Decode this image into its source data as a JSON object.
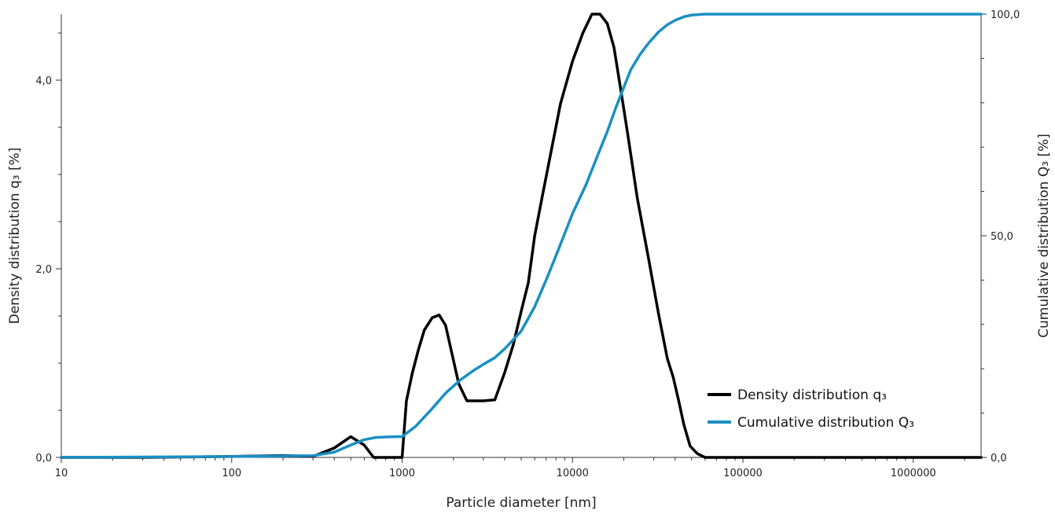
{
  "chart_data": {
    "type": "line",
    "xlabel": "Particle diameter [nm]",
    "ylabel": "Density distribution q₃ [%]",
    "y2label": "Cumulative distribution Q₃ [%]",
    "x_scale": "log",
    "xlim": [
      10,
      2500000
    ],
    "ylim": [
      0,
      4.7
    ],
    "y2lim": [
      0,
      100
    ],
    "x_ticks": [
      10,
      100,
      1000,
      10000,
      100000,
      1000000
    ],
    "x_tick_labels": [
      "10",
      "100",
      "1000",
      "10000",
      "100000",
      "1000000"
    ],
    "y_ticks": [
      0,
      2,
      4
    ],
    "y_tick_labels": [
      "0,0",
      "2,0",
      "4,0"
    ],
    "y2_ticks": [
      0,
      50,
      100
    ],
    "y2_tick_labels": [
      "0,0",
      "50,0",
      "100,0"
    ],
    "legend_position": "bottom-right",
    "series": [
      {
        "name": "Density distribution q₃",
        "color": "#000000",
        "axis": "left",
        "x": [
          10,
          30,
          100,
          200,
          300,
          400,
          500,
          600,
          680,
          800,
          950,
          1000,
          1060,
          1150,
          1250,
          1350,
          1500,
          1650,
          1800,
          1950,
          2150,
          2400,
          2650,
          3000,
          3500,
          4000,
          4500,
          5000,
          5500,
          6000,
          6700,
          7500,
          8500,
          10000,
          11500,
          13000,
          14500,
          16000,
          17500,
          19000,
          21000,
          24000,
          28000,
          32000,
          36000,
          39000,
          42000,
          45000,
          49000,
          54000,
          60000,
          70000,
          100000,
          1000000,
          2500000
        ],
        "y": [
          0,
          0,
          0.01,
          0.02,
          0.01,
          0.1,
          0.22,
          0.13,
          0,
          0,
          0,
          0,
          0.6,
          0.9,
          1.15,
          1.35,
          1.48,
          1.51,
          1.4,
          1.12,
          0.78,
          0.6,
          0.6,
          0.6,
          0.61,
          0.9,
          1.2,
          1.55,
          1.85,
          2.35,
          2.8,
          3.25,
          3.75,
          4.2,
          4.5,
          4.7,
          4.7,
          4.6,
          4.35,
          3.95,
          3.45,
          2.75,
          2.1,
          1.52,
          1.05,
          0.85,
          0.6,
          0.35,
          0.12,
          0.04,
          0,
          0,
          0,
          0,
          0
        ]
      },
      {
        "name": "Cumulative distribution Q₃",
        "color": "#1a8fc4",
        "axis": "right",
        "x": [
          10,
          100,
          300,
          400,
          500,
          600,
          700,
          800,
          1000,
          1200,
          1500,
          1800,
          2200,
          2600,
          3000,
          3500,
          4000,
          5000,
          6000,
          7000,
          8000,
          10000,
          12000,
          14000,
          16000,
          18000,
          20000,
          22000,
          25000,
          28000,
          32000,
          36000,
          40000,
          45000,
          50000,
          60000,
          100000,
          1000000,
          2500000
        ],
        "y": [
          0,
          0.2,
          0.4,
          1.2,
          2.8,
          4,
          4.5,
          4.6,
          4.7,
          7,
          11,
          14.5,
          17.5,
          19.5,
          21,
          22.5,
          24.5,
          28.5,
          34,
          40,
          45.5,
          55,
          61.5,
          68,
          73.5,
          79,
          83.5,
          87.5,
          91,
          93.5,
          96,
          97.6,
          98.6,
          99.4,
          99.8,
          100,
          100,
          100,
          100
        ]
      }
    ]
  }
}
